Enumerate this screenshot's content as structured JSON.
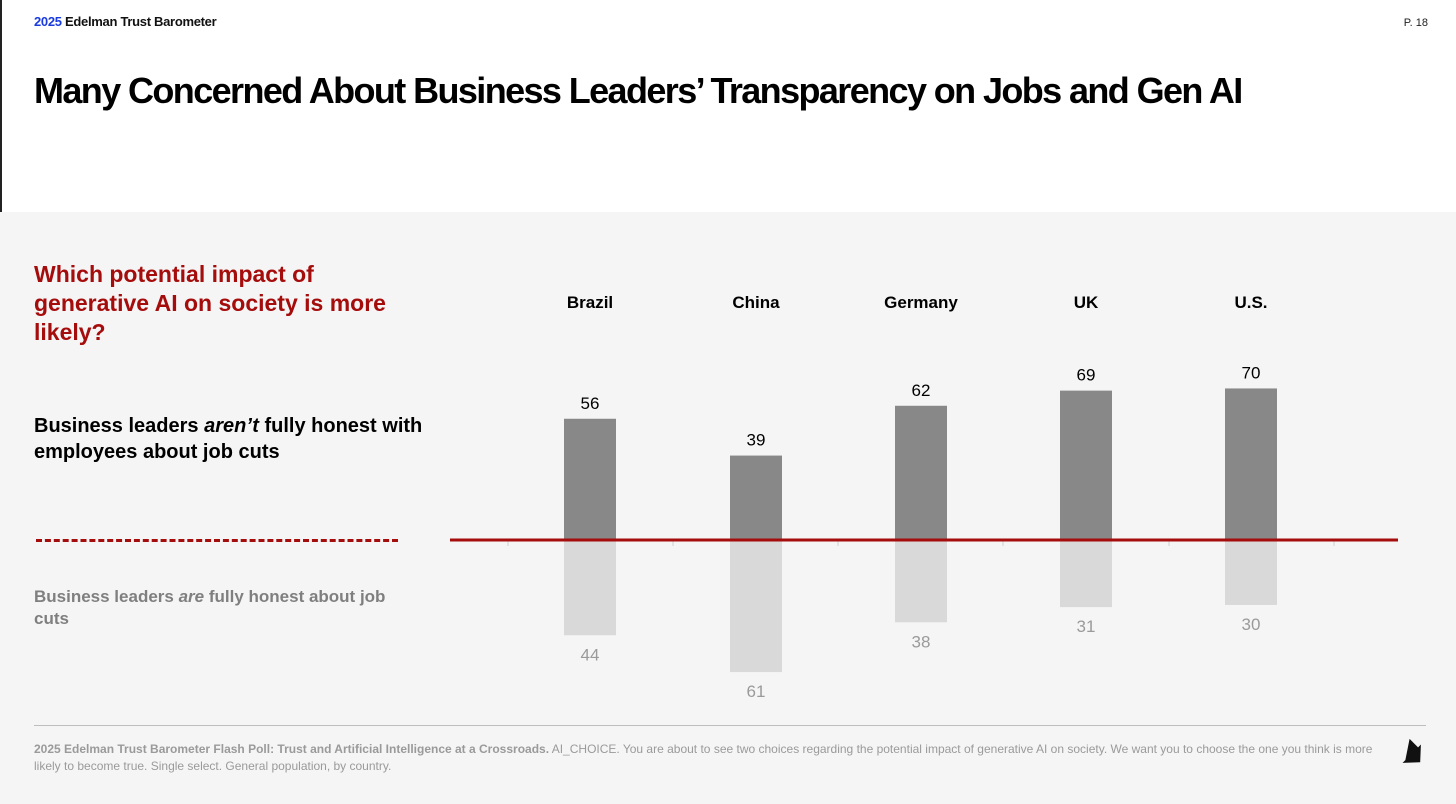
{
  "header": {
    "brand_year": "2025",
    "brand_name": "Edelman Trust Barometer",
    "page_number": "P. 18",
    "brand_color": "#1a3be0"
  },
  "title": "Many Concerned About Business Leaders’ Transparency on Jobs and Gen AI",
  "question": "Which potential impact of generative AI on society is more likely?",
  "legend": {
    "top_pre": "Business leaders ",
    "top_em": "aren’t",
    "top_post": " fully honest with employees about job cuts",
    "bottom_pre": "Business leaders ",
    "bottom_em": "are",
    "bottom_post": " fully honest about job cuts"
  },
  "footer": {
    "source_bold": "2025 Edelman Trust Barometer Flash Poll: Trust and Artificial Intelligence at a Crossroads.",
    "source_rest": " AI_CHOICE. You are about to see two choices regarding the potential impact of generative AI on society. We want you to choose the one you think is more likely to become true. Single select. General population, by country.",
    "next_icon": "arrow-down-right-icon"
  },
  "colors": {
    "accent": "#a50c0c",
    "bar_top": "#888888",
    "bar_bottom": "#d9d9d9",
    "label_bottom": "#9a9a9a"
  },
  "chart_data": {
    "type": "bar",
    "orientation": "diverging-vertical",
    "categories": [
      "Brazil",
      "China",
      "Germany",
      "UK",
      "U.S."
    ],
    "series": [
      {
        "name": "Business leaders aren’t fully honest with employees about job cuts",
        "values": [
          56,
          39,
          62,
          69,
          70
        ]
      },
      {
        "name": "Business leaders are fully honest about job cuts",
        "values": [
          44,
          61,
          38,
          31,
          30
        ]
      }
    ],
    "category_labels_position": "top",
    "grid": false
  }
}
